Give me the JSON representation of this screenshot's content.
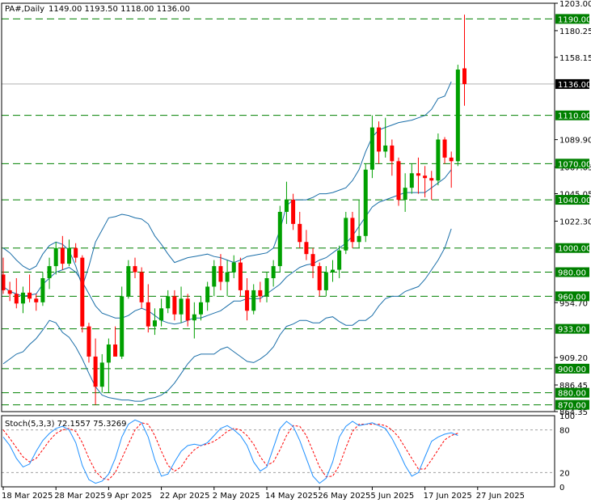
{
  "header": {
    "symbol_label": "PA#,Daily",
    "ohlc_label": "1149.00 1193.50 1118.00 1136.00"
  },
  "oscillator": {
    "label": "Stoch(5,3,3) 72.1557 75.3269",
    "axis_labels": [
      "100",
      "80",
      "20",
      "0"
    ],
    "main_color": "#1e90ff",
    "signal_color": "#ff0000"
  },
  "colors": {
    "bull": "#00a000",
    "bear": "#ff0000",
    "band": "#1a6ea8",
    "level_line": "#008000",
    "level_box": "#008000",
    "price_box": "#000000"
  },
  "chart_data": {
    "type": "candlestick",
    "symbol": "PA#",
    "timeframe": "Daily",
    "ylim": [
      864.35,
      1203.0
    ],
    "price_ticks": [
      "1203.00",
      "1180.25",
      "1158.15",
      "1089.90",
      "1067.05",
      "1045.05",
      "1022.30",
      "954.70",
      "909.20",
      "886.45",
      "864.35"
    ],
    "horizontal_levels": [
      "1190.00",
      "1110.00",
      "1070.00",
      "1040.00",
      "1000.00",
      "980.00",
      "960.00",
      "933.00",
      "900.00",
      "880.00",
      "870.00"
    ],
    "current_price_label": "1136.00",
    "date_labels": [
      {
        "label": "18 Mar 2025",
        "bar": 0
      },
      {
        "label": "28 Mar 2025",
        "bar": 8
      },
      {
        "label": "9 Apr 2025",
        "bar": 16
      },
      {
        "label": "22 Apr 2025",
        "bar": 24
      },
      {
        "label": "2 May 2025",
        "bar": 32
      },
      {
        "label": "14 May 2025",
        "bar": 40
      },
      {
        "label": "26 May 2025",
        "bar": 48
      },
      {
        "label": "5 Jun 2025",
        "bar": 56
      },
      {
        "label": "17 Jun 2025",
        "bar": 64
      },
      {
        "label": "27 Jun 2025",
        "bar": 72
      }
    ],
    "candles": [
      {
        "o": 978,
        "h": 992,
        "l": 962,
        "c": 965
      },
      {
        "o": 965,
        "h": 972,
        "l": 956,
        "c": 962
      },
      {
        "o": 962,
        "h": 975,
        "l": 950,
        "c": 954
      },
      {
        "o": 954,
        "h": 968,
        "l": 946,
        "c": 963
      },
      {
        "o": 963,
        "h": 978,
        "l": 955,
        "c": 958
      },
      {
        "o": 958,
        "h": 962,
        "l": 948,
        "c": 955
      },
      {
        "o": 955,
        "h": 980,
        "l": 952,
        "c": 975
      },
      {
        "o": 975,
        "h": 992,
        "l": 966,
        "c": 985
      },
      {
        "o": 985,
        "h": 1005,
        "l": 978,
        "c": 1000
      },
      {
        "o": 1000,
        "h": 1010,
        "l": 982,
        "c": 987
      },
      {
        "o": 987,
        "h": 1007,
        "l": 985,
        "c": 1000
      },
      {
        "o": 1000,
        "h": 1004,
        "l": 988,
        "c": 992
      },
      {
        "o": 992,
        "h": 994,
        "l": 930,
        "c": 935
      },
      {
        "o": 935,
        "h": 938,
        "l": 905,
        "c": 910
      },
      {
        "o": 910,
        "h": 925,
        "l": 870,
        "c": 885
      },
      {
        "o": 885,
        "h": 912,
        "l": 880,
        "c": 905
      },
      {
        "o": 905,
        "h": 925,
        "l": 880,
        "c": 920
      },
      {
        "o": 920,
        "h": 935,
        "l": 910,
        "c": 910
      },
      {
        "o": 910,
        "h": 968,
        "l": 908,
        "c": 960
      },
      {
        "o": 960,
        "h": 990,
        "l": 958,
        "c": 985
      },
      {
        "o": 985,
        "h": 992,
        "l": 975,
        "c": 980
      },
      {
        "o": 980,
        "h": 984,
        "l": 950,
        "c": 955
      },
      {
        "o": 955,
        "h": 970,
        "l": 930,
        "c": 935
      },
      {
        "o": 935,
        "h": 950,
        "l": 928,
        "c": 940
      },
      {
        "o": 940,
        "h": 958,
        "l": 935,
        "c": 950
      },
      {
        "o": 950,
        "h": 965,
        "l": 946,
        "c": 960
      },
      {
        "o": 960,
        "h": 965,
        "l": 940,
        "c": 945
      },
      {
        "o": 945,
        "h": 968,
        "l": 938,
        "c": 958
      },
      {
        "o": 958,
        "h": 962,
        "l": 935,
        "c": 940
      },
      {
        "o": 940,
        "h": 955,
        "l": 925,
        "c": 945
      },
      {
        "o": 945,
        "h": 960,
        "l": 940,
        "c": 955
      },
      {
        "o": 955,
        "h": 972,
        "l": 948,
        "c": 968
      },
      {
        "o": 968,
        "h": 990,
        "l": 960,
        "c": 985
      },
      {
        "o": 985,
        "h": 995,
        "l": 965,
        "c": 972
      },
      {
        "o": 972,
        "h": 990,
        "l": 960,
        "c": 980
      },
      {
        "o": 980,
        "h": 994,
        "l": 975,
        "c": 988
      },
      {
        "o": 988,
        "h": 992,
        "l": 960,
        "c": 965
      },
      {
        "o": 965,
        "h": 975,
        "l": 940,
        "c": 948
      },
      {
        "o": 948,
        "h": 970,
        "l": 945,
        "c": 965
      },
      {
        "o": 965,
        "h": 972,
        "l": 955,
        "c": 960
      },
      {
        "o": 960,
        "h": 980,
        "l": 955,
        "c": 975
      },
      {
        "o": 975,
        "h": 990,
        "l": 968,
        "c": 985
      },
      {
        "o": 985,
        "h": 1035,
        "l": 980,
        "c": 1030
      },
      {
        "o": 1030,
        "h": 1055,
        "l": 1020,
        "c": 1040
      },
      {
        "o": 1040,
        "h": 1045,
        "l": 1015,
        "c": 1020
      },
      {
        "o": 1020,
        "h": 1030,
        "l": 1000,
        "c": 1005
      },
      {
        "o": 1005,
        "h": 1015,
        "l": 990,
        "c": 995
      },
      {
        "o": 995,
        "h": 1000,
        "l": 975,
        "c": 985
      },
      {
        "o": 985,
        "h": 988,
        "l": 960,
        "c": 965
      },
      {
        "o": 965,
        "h": 985,
        "l": 960,
        "c": 980
      },
      {
        "o": 980,
        "h": 990,
        "l": 972,
        "c": 982
      },
      {
        "o": 982,
        "h": 1002,
        "l": 975,
        "c": 998
      },
      {
        "o": 998,
        "h": 1030,
        "l": 995,
        "c": 1025
      },
      {
        "o": 1025,
        "h": 1030,
        "l": 1000,
        "c": 1005
      },
      {
        "o": 1005,
        "h": 1040,
        "l": 1000,
        "c": 1010
      },
      {
        "o": 1010,
        "h": 1070,
        "l": 1005,
        "c": 1065
      },
      {
        "o": 1065,
        "h": 1110,
        "l": 1058,
        "c": 1100
      },
      {
        "o": 1100,
        "h": 1105,
        "l": 1070,
        "c": 1080
      },
      {
        "o": 1080,
        "h": 1108,
        "l": 1075,
        "c": 1085
      },
      {
        "o": 1085,
        "h": 1090,
        "l": 1060,
        "c": 1072
      },
      {
        "o": 1072,
        "h": 1075,
        "l": 1035,
        "c": 1040
      },
      {
        "o": 1040,
        "h": 1062,
        "l": 1030,
        "c": 1050
      },
      {
        "o": 1050,
        "h": 1070,
        "l": 1045,
        "c": 1062
      },
      {
        "o": 1062,
        "h": 1075,
        "l": 1045,
        "c": 1060
      },
      {
        "o": 1060,
        "h": 1068,
        "l": 1042,
        "c": 1058
      },
      {
        "o": 1058,
        "h": 1064,
        "l": 1040,
        "c": 1056
      },
      {
        "o": 1056,
        "h": 1095,
        "l": 1052,
        "c": 1090
      },
      {
        "o": 1090,
        "h": 1092,
        "l": 1070,
        "c": 1075
      },
      {
        "o": 1075,
        "h": 1080,
        "l": 1050,
        "c": 1072
      },
      {
        "o": 1072,
        "h": 1152,
        "l": 1068,
        "c": 1148
      },
      {
        "o": 1149,
        "h": 1193.5,
        "l": 1118,
        "c": 1136
      }
    ],
    "bollinger_upper": [
      1000,
      996,
      990,
      985,
      982,
      985,
      995,
      1002,
      1005,
      1003,
      998,
      985,
      968,
      985,
      1005,
      1015,
      1025,
      1026,
      1028,
      1027,
      1025,
      1024,
      1020,
      1010,
      1003,
      995,
      988,
      990,
      992,
      993,
      994,
      995,
      993,
      992,
      990,
      988,
      990,
      993,
      994,
      995,
      996,
      1000,
      1015,
      1035,
      1040,
      1040,
      1040,
      1042,
      1045,
      1045,
      1046,
      1048,
      1050,
      1056,
      1065,
      1080,
      1092,
      1098,
      1100,
      1102,
      1104,
      1105,
      1106,
      1108,
      1110,
      1115,
      1124,
      1126,
      1138,
      null
    ],
    "bollinger_middle": [
      968,
      964,
      962,
      960,
      961,
      962,
      970,
      975,
      980,
      982,
      984,
      980,
      972,
      962,
      952,
      946,
      944,
      942,
      942,
      944,
      948,
      950,
      948,
      944,
      940,
      938,
      937,
      938,
      940,
      942,
      942,
      944,
      946,
      948,
      952,
      956,
      956,
      958,
      958,
      958,
      962,
      966,
      970,
      976,
      980,
      984,
      986,
      987,
      990,
      992,
      996,
      1000,
      1004,
      1010,
      1018,
      1026,
      1034,
      1038,
      1040,
      1042,
      1044,
      1046,
      1046,
      1046,
      1046,
      1050,
      1054,
      1058,
      1065,
      null
    ],
    "bollinger_lower": [
      904,
      908,
      912,
      914,
      920,
      925,
      932,
      940,
      938,
      930,
      926,
      918,
      908,
      896,
      885,
      878,
      876,
      875,
      874,
      874,
      873,
      873,
      875,
      876,
      878,
      882,
      888,
      896,
      904,
      910,
      912,
      912,
      912,
      916,
      918,
      914,
      910,
      906,
      905,
      908,
      912,
      918,
      928,
      935,
      937,
      940,
      940,
      938,
      938,
      942,
      943,
      939,
      936,
      936,
      940,
      940,
      944,
      952,
      958,
      960,
      960,
      964,
      966,
      968,
      974,
      982,
      990,
      1000,
      1016,
      null
    ],
    "stochastic": {
      "params": "5,3,3",
      "k_last": 72.1557,
      "d_last": 75.3269,
      "levels": [
        80,
        20
      ],
      "range": [
        0,
        100
      ],
      "k": [
        70,
        58,
        40,
        28,
        32,
        50,
        65,
        75,
        82,
        85,
        80,
        62,
        30,
        10,
        5,
        8,
        18,
        40,
        70,
        88,
        94,
        90,
        70,
        38,
        15,
        18,
        35,
        50,
        58,
        60,
        58,
        62,
        72,
        82,
        86,
        80,
        72,
        58,
        35,
        22,
        28,
        55,
        82,
        92,
        85,
        65,
        40,
        15,
        5,
        12,
        35,
        70,
        85,
        92,
        86,
        88,
        90,
        86,
        82,
        68,
        50,
        30,
        15,
        20,
        42,
        64,
        70,
        74,
        76,
        72.2
      ],
      "d": [
        80,
        68,
        55,
        42,
        35,
        40,
        52,
        65,
        75,
        80,
        82,
        78,
        62,
        40,
        22,
        12,
        10,
        20,
        40,
        60,
        80,
        90,
        88,
        72,
        50,
        30,
        22,
        28,
        42,
        52,
        58,
        60,
        64,
        70,
        78,
        82,
        80,
        72,
        60,
        42,
        30,
        35,
        52,
        72,
        86,
        85,
        72,
        50,
        28,
        14,
        15,
        30,
        55,
        78,
        88,
        88,
        88,
        88,
        86,
        80,
        70,
        55,
        40,
        25,
        25,
        38,
        52,
        66,
        72,
        75.3
      ]
    }
  }
}
